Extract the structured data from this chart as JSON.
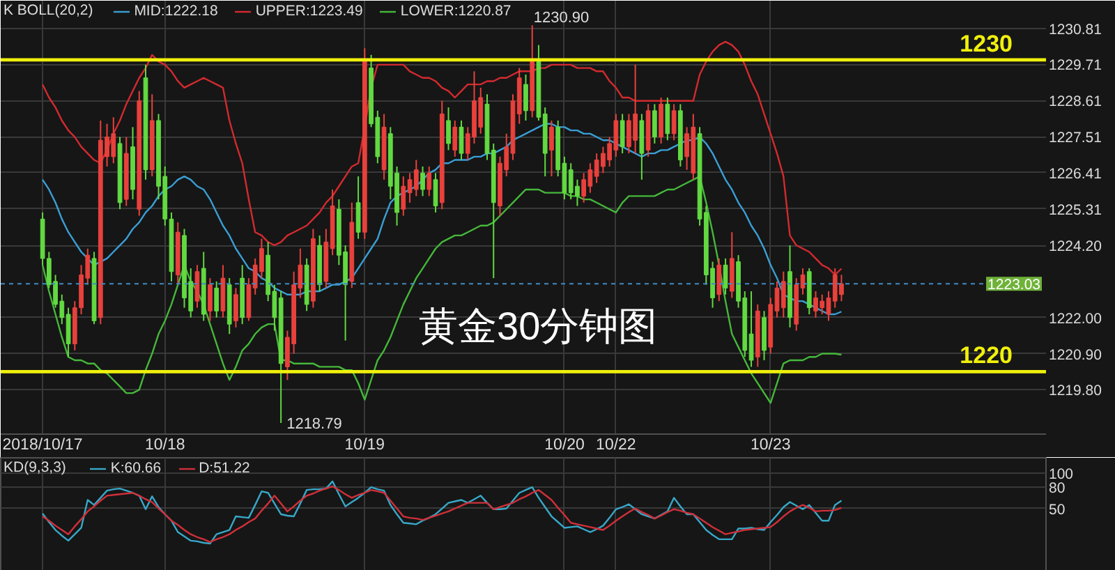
{
  "chart_data": [
    {
      "type": "candlestick",
      "title": "黄金30分钟图",
      "legend_title": "K BOLL(20,2)",
      "legend": "top left",
      "grid": true,
      "categories": [
        "2018/10/17",
        null,
        null,
        null,
        null,
        null,
        null,
        null,
        null,
        null,
        null,
        null,
        null,
        null,
        null,
        null,
        null,
        null,
        null,
        "10/18",
        null,
        null,
        null,
        null,
        null,
        null,
        null,
        null,
        null,
        null,
        null,
        null,
        null,
        null,
        null,
        null,
        null,
        null,
        null,
        null,
        null,
        null,
        null,
        null,
        null,
        null,
        null,
        null,
        null,
        null,
        "10/19",
        null,
        null,
        null,
        null,
        null,
        null,
        null,
        null,
        null,
        null,
        null,
        null,
        null,
        null,
        null,
        null,
        null,
        null,
        null,
        null,
        null,
        null,
        null,
        null,
        null,
        null,
        null,
        null,
        null,
        null,
        "10/20",
        null,
        null,
        null,
        null,
        null,
        null,
        null,
        "10/22",
        null,
        null,
        null,
        null,
        null,
        null,
        null,
        null,
        null,
        null,
        null,
        null,
        null,
        null,
        null,
        null,
        null,
        null,
        null,
        null,
        null,
        null,
        null,
        "10/23",
        null,
        null,
        null,
        null,
        null,
        null,
        null,
        null,
        null,
        null,
        null
      ],
      "ylim": [
        1218.45,
        1231.65
      ],
      "yticks": [
        {
          "value": 1219.8,
          "label": "1219.80"
        },
        {
          "value": 1220.9,
          "label": "1220.90"
        },
        {
          "value": 1222,
          "label": "1222.00"
        },
        {
          "value": 1224.2,
          "label": "1224.20"
        },
        1225.31,
        1226.41,
        1227.51,
        1228.61,
        1229.71,
        1230.81
      ],
      "ohlc": [
        [
          1225.0,
          1225.2,
          1223.6,
          1223.8
        ],
        [
          1223.8,
          1224.0,
          1222.9,
          1223.0
        ],
        [
          1223.1,
          1223.3,
          1222.3,
          1222.4
        ],
        [
          1222.5,
          1222.7,
          1221.8,
          1222.0
        ],
        [
          1222.1,
          1222.3,
          1220.8,
          1221.2
        ],
        [
          1221.2,
          1222.5,
          1221.0,
          1222.3
        ],
        [
          1222.3,
          1223.6,
          1222.1,
          1223.3
        ],
        [
          1223.2,
          1224.1,
          1223.0,
          1223.9
        ],
        [
          1223.8,
          1224.0,
          1221.8,
          1221.9
        ],
        [
          1222.0,
          1228.0,
          1221.8,
          1227.4
        ],
        [
          1226.9,
          1227.9,
          1226.6,
          1227.5
        ],
        [
          1226.9,
          1228.1,
          1226.7,
          1227.6
        ],
        [
          1227.3,
          1227.5,
          1225.3,
          1225.5
        ],
        [
          1225.6,
          1227.5,
          1225.4,
          1227.0
        ],
        [
          1227.2,
          1227.8,
          1225.6,
          1225.9
        ],
        [
          1225.3,
          1228.9,
          1225.1,
          1228.6
        ],
        [
          1229.3,
          1229.7,
          1226.2,
          1226.5
        ],
        [
          1226.5,
          1228.8,
          1226.3,
          1228.0
        ],
        [
          1228.0,
          1228.2,
          1225.6,
          1226.0
        ],
        [
          1226.3,
          1226.6,
          1224.8,
          1225.0
        ],
        [
          1225.0,
          1225.2,
          1223.1,
          1223.4
        ],
        [
          1223.3,
          1224.9,
          1223.0,
          1224.6
        ],
        [
          1224.5,
          1224.7,
          1222.3,
          1222.6
        ],
        [
          1223.1,
          1223.5,
          1222.0,
          1222.2
        ],
        [
          1222.5,
          1223.6,
          1222.3,
          1223.4
        ],
        [
          1223.5,
          1224.0,
          1221.9,
          1222.1
        ],
        [
          1222.2,
          1223.2,
          1221.9,
          1223.0
        ],
        [
          1222.9,
          1223.1,
          1222.0,
          1222.2
        ],
        [
          1222.2,
          1223.6,
          1222.0,
          1223.2
        ],
        [
          1223.0,
          1223.2,
          1221.5,
          1221.8
        ],
        [
          1221.9,
          1222.9,
          1221.7,
          1222.7
        ],
        [
          1223.2,
          1223.6,
          1221.8,
          1222.0
        ],
        [
          1222.0,
          1223.2,
          1221.9,
          1223.0
        ],
        [
          1222.9,
          1223.8,
          1222.7,
          1223.6
        ],
        [
          1223.4,
          1224.4,
          1223.2,
          1224.1
        ],
        [
          1223.9,
          1224.3,
          1222.5,
          1222.7
        ],
        [
          1222.8,
          1223.0,
          1221.6,
          1222.0
        ],
        [
          1222.6,
          1222.8,
          1218.79,
          1220.6
        ],
        [
          1220.5,
          1221.6,
          1220.1,
          1221.4
        ],
        [
          1221.2,
          1223.4,
          1220.9,
          1223.0
        ],
        [
          1222.9,
          1224.1,
          1222.6,
          1223.6
        ],
        [
          1223.6,
          1223.8,
          1222.2,
          1222.4
        ],
        [
          1222.5,
          1224.7,
          1222.3,
          1224.4
        ],
        [
          1224.2,
          1224.5,
          1222.8,
          1223.0
        ],
        [
          1223.1,
          1224.7,
          1222.9,
          1224.3
        ],
        [
          1224.1,
          1225.9,
          1223.9,
          1225.4
        ],
        [
          1225.3,
          1225.6,
          1223.6,
          1223.9
        ],
        [
          1224.0,
          1224.2,
          1221.3,
          1223.0
        ],
        [
          1223.1,
          1225.5,
          1222.9,
          1224.9
        ],
        [
          1225.5,
          1226.3,
          1224.4,
          1224.6
        ],
        [
          1224.6,
          1230.2,
          1224.4,
          1229.8
        ],
        [
          1229.6,
          1230.0,
          1227.8,
          1227.9
        ],
        [
          1228.1,
          1228.3,
          1226.7,
          1226.9
        ],
        [
          1226.5,
          1228.2,
          1226.2,
          1227.8
        ],
        [
          1227.6,
          1227.8,
          1225.6,
          1226.0
        ],
        [
          1226.4,
          1226.6,
          1224.8,
          1225.2
        ],
        [
          1225.3,
          1226.3,
          1225.1,
          1226.0
        ],
        [
          1225.8,
          1226.4,
          1225.5,
          1226.2
        ],
        [
          1225.9,
          1226.8,
          1225.7,
          1226.5
        ],
        [
          1226.4,
          1226.6,
          1225.7,
          1225.9
        ],
        [
          1225.9,
          1226.6,
          1225.7,
          1226.4
        ],
        [
          1226.2,
          1226.4,
          1225.2,
          1225.4
        ],
        [
          1225.5,
          1228.6,
          1225.3,
          1228.2
        ],
        [
          1228.0,
          1228.4,
          1227.1,
          1227.3
        ],
        [
          1227.1,
          1228.0,
          1226.9,
          1227.8
        ],
        [
          1227.8,
          1228.0,
          1226.8,
          1227.0
        ],
        [
          1227.0,
          1227.8,
          1226.8,
          1227.6
        ],
        [
          1227.5,
          1229.5,
          1227.3,
          1228.6
        ],
        [
          1227.8,
          1229.0,
          1227.6,
          1228.7
        ],
        [
          1228.5,
          1228.8,
          1226.8,
          1227.0
        ],
        [
          1227.1,
          1227.3,
          1223.2,
          1225.5
        ],
        [
          1225.4,
          1226.9,
          1225.1,
          1226.7
        ],
        [
          1226.5,
          1227.6,
          1226.3,
          1227.2
        ],
        [
          1227.0,
          1228.8,
          1226.8,
          1228.6
        ],
        [
          1228.2,
          1229.6,
          1227.9,
          1229.3
        ],
        [
          1229.1,
          1229.4,
          1228.0,
          1228.3
        ],
        [
          1228.3,
          1230.9,
          1228.1,
          1229.8
        ],
        [
          1229.8,
          1230.3,
          1228.0,
          1228.1
        ],
        [
          1228.2,
          1228.4,
          1226.3,
          1227.0
        ],
        [
          1227.1,
          1228.0,
          1226.3,
          1227.8
        ],
        [
          1227.8,
          1228.0,
          1226.3,
          1226.5
        ],
        [
          1226.7,
          1226.9,
          1225.6,
          1225.8
        ],
        [
          1226.5,
          1226.7,
          1225.6,
          1225.8
        ],
        [
          1226.0,
          1226.2,
          1225.4,
          1225.7
        ],
        [
          1225.7,
          1226.4,
          1225.5,
          1226.2
        ],
        [
          1226.0,
          1226.7,
          1225.8,
          1226.5
        ],
        [
          1226.3,
          1227.0,
          1226.1,
          1226.8
        ],
        [
          1226.6,
          1227.2,
          1226.4,
          1227.0
        ],
        [
          1226.8,
          1227.5,
          1226.6,
          1227.3
        ],
        [
          1227.1,
          1228.2,
          1226.9,
          1228.0
        ],
        [
          1228.0,
          1228.2,
          1227.0,
          1227.2
        ],
        [
          1227.2,
          1228.2,
          1227.0,
          1228.0
        ],
        [
          1227.4,
          1229.7,
          1227.0,
          1228.2
        ],
        [
          1228.0,
          1228.2,
          1226.2,
          1227.0
        ],
        [
          1227.1,
          1228.5,
          1226.9,
          1228.3
        ],
        [
          1228.3,
          1228.5,
          1227.3,
          1227.5
        ],
        [
          1227.5,
          1228.7,
          1227.3,
          1228.5
        ],
        [
          1228.5,
          1228.7,
          1227.4,
          1227.6
        ],
        [
          1227.6,
          1228.5,
          1227.4,
          1228.3
        ],
        [
          1228.3,
          1228.5,
          1226.6,
          1226.8
        ],
        [
          1226.9,
          1227.8,
          1226.5,
          1227.6
        ],
        [
          1226.4,
          1228.2,
          1226.2,
          1227.8
        ],
        [
          1227.6,
          1227.8,
          1224.8,
          1225.0
        ],
        [
          1225.2,
          1225.4,
          1223.0,
          1223.3
        ],
        [
          1223.5,
          1223.7,
          1222.3,
          1222.6
        ],
        [
          1222.7,
          1223.8,
          1222.5,
          1223.6
        ],
        [
          1223.6,
          1223.8,
          1222.7,
          1222.9
        ],
        [
          1222.8,
          1224.6,
          1222.6,
          1223.8
        ],
        [
          1223.7,
          1223.9,
          1222.3,
          1222.5
        ],
        [
          1222.6,
          1222.8,
          1220.8,
          1221.0
        ],
        [
          1221.5,
          1222.8,
          1220.5,
          1220.7
        ],
        [
          1220.8,
          1222.4,
          1220.5,
          1222.2
        ],
        [
          1222.0,
          1222.2,
          1220.7,
          1221.0
        ],
        [
          1221.1,
          1222.6,
          1220.9,
          1222.4
        ],
        [
          1222.2,
          1223.1,
          1222.0,
          1222.9
        ],
        [
          1222.3,
          1223.4,
          1222.0,
          1223.1
        ],
        [
          1223.4,
          1224.2,
          1221.7,
          1222.0
        ],
        [
          1221.8,
          1223.2,
          1221.6,
          1223.0
        ],
        [
          1222.9,
          1223.5,
          1222.7,
          1223.3
        ],
        [
          1223.4,
          1223.5,
          1222.1,
          1222.3
        ],
        [
          1222.2,
          1222.8,
          1222.0,
          1222.6
        ],
        [
          1222.3,
          1222.7,
          1222.1,
          1222.5
        ],
        [
          1222.1,
          1222.8,
          1221.9,
          1222.6
        ],
        [
          1222.5,
          1223.5,
          1222.3,
          1223.3
        ],
        [
          1222.7,
          1223.3,
          1222.5,
          1223.03
        ]
      ],
      "colors": [
        "#62d941",
        "#62d941",
        "#62d941",
        "#62d941",
        "#62d941",
        "#e8413c",
        "#e8413c",
        "#e8413c",
        "#62d941",
        "#e8413c",
        "#e8413c",
        "#e8413c",
        "#62d941",
        "#e8413c",
        "#62d941",
        "#e8413c",
        "#62d941",
        "#e8413c",
        "#62d941",
        "#62d941",
        "#62d941",
        "#e8413c",
        "#62d941",
        "#62d941",
        "#e8413c",
        "#62d941",
        "#e8413c",
        "#62d941",
        "#e8413c",
        "#62d941",
        "#e8413c",
        "#62d941",
        "#e8413c",
        "#e8413c",
        "#e8413c",
        "#62d941",
        "#62d941",
        "#62d941",
        "#e8413c",
        "#e8413c",
        "#e8413c",
        "#62d941",
        "#e8413c",
        "#62d941",
        "#e8413c",
        "#e8413c",
        "#62d941",
        "#62d941",
        "#e8413c",
        "#62d941",
        "#e8413c",
        "#62d941",
        "#62d941",
        "#e8413c",
        "#62d941",
        "#62d941",
        "#e8413c",
        "#e8413c",
        "#e8413c",
        "#62d941",
        "#e8413c",
        "#62d941",
        "#e8413c",
        "#62d941",
        "#e8413c",
        "#62d941",
        "#e8413c",
        "#e8413c",
        "#e8413c",
        "#62d941",
        "#62d941",
        "#e8413c",
        "#e8413c",
        "#e8413c",
        "#e8413c",
        "#62d941",
        "#e8413c",
        "#62d941",
        "#62d941",
        "#e8413c",
        "#62d941",
        "#62d941",
        "#62d941",
        "#62d941",
        "#e8413c",
        "#e8413c",
        "#e8413c",
        "#e8413c",
        "#e8413c",
        "#e8413c",
        "#62d941",
        "#e8413c",
        "#e8413c",
        "#62d941",
        "#e8413c",
        "#62d941",
        "#e8413c",
        "#62d941",
        "#e8413c",
        "#62d941",
        "#e8413c",
        "#e8413c",
        "#62d941",
        "#62d941",
        "#62d941",
        "#e8413c",
        "#62d941",
        "#e8413c",
        "#62d941",
        "#62d941",
        "#62d941",
        "#e8413c",
        "#62d941",
        "#e8413c",
        "#e8413c",
        "#e8413c",
        "#62d941",
        "#e8413c",
        "#e8413c",
        "#62d941",
        "#e8413c",
        "#e8413c",
        "#e8413c",
        "#e8413c",
        "#e8413c"
      ],
      "series": [
        {
          "name": "MID:1222.18",
          "type": "line",
          "color": "#3a9fd6",
          "values": [
            1226.2,
            1225.9,
            1225.5,
            1225.0,
            1224.6,
            1224.3,
            1224.0,
            1223.8,
            1223.6,
            1223.7,
            1223.8,
            1224.0,
            1224.2,
            1224.4,
            1224.7,
            1224.9,
            1225.2,
            1225.4,
            1225.7,
            1225.9,
            1226.0,
            1226.2,
            1226.3,
            1226.2,
            1226.0,
            1225.9,
            1225.6,
            1225.2,
            1224.8,
            1224.5,
            1224.1,
            1223.8,
            1223.5,
            1223.4,
            1223.2,
            1223.1,
            1222.9,
            1222.8,
            1222.7,
            1222.7,
            1222.7,
            1222.8,
            1222.8,
            1222.8,
            1222.9,
            1223.0,
            1223.0,
            1223.1,
            1223.2,
            1223.5,
            1223.8,
            1224.1,
            1224.4,
            1225.0,
            1225.5,
            1225.7,
            1225.8,
            1225.9,
            1226.0,
            1226.2,
            1226.4,
            1226.5,
            1226.7,
            1226.7,
            1226.8,
            1226.8,
            1226.8,
            1226.9,
            1226.9,
            1227.0,
            1227.0,
            1227.1,
            1227.2,
            1227.4,
            1227.5,
            1227.6,
            1227.7,
            1227.8,
            1227.9,
            1227.9,
            1227.8,
            1227.8,
            1227.7,
            1227.7,
            1227.6,
            1227.6,
            1227.5,
            1227.4,
            1227.4,
            1227.3,
            1227.2,
            1227.1,
            1227.0,
            1226.9,
            1227.0,
            1227.0,
            1227.1,
            1227.1,
            1227.2,
            1227.3,
            1227.4,
            1227.4,
            1227.5,
            1227.3,
            1227.0,
            1226.6,
            1226.2,
            1225.9,
            1225.5,
            1225.2,
            1224.8,
            1224.5,
            1224.1,
            1223.6,
            1223.2,
            1222.7,
            1222.6,
            1222.5,
            1222.5,
            1222.4,
            1222.3,
            1222.2,
            1222.1,
            1222.1,
            1222.18
          ]
        },
        {
          "name": "UPPER:1223.49",
          "type": "line",
          "color": "#d42a2f",
          "values": [
            1229.1,
            1228.7,
            1228.4,
            1228.0,
            1227.7,
            1227.5,
            1227.2,
            1227.0,
            1226.8,
            1226.7,
            1227.1,
            1227.6,
            1228.0,
            1228.5,
            1228.9,
            1229.3,
            1229.6,
            1230.0,
            1229.8,
            1229.7,
            1229.5,
            1229.2,
            1229.0,
            1229.1,
            1229.2,
            1229.3,
            1229.2,
            1229.1,
            1229.0,
            1228.0,
            1227.3,
            1226.7,
            1225.6,
            1224.6,
            1224.5,
            1224.3,
            1224.2,
            1224.3,
            1224.5,
            1224.6,
            1224.7,
            1224.8,
            1225.0,
            1225.2,
            1225.5,
            1225.7,
            1226.0,
            1226.3,
            1226.6,
            1226.7,
            1227.8,
            1229.0,
            1229.7,
            1229.7,
            1229.7,
            1229.7,
            1229.7,
            1229.5,
            1229.4,
            1229.3,
            1229.3,
            1229.2,
            1229.0,
            1228.9,
            1228.7,
            1228.9,
            1229.1,
            1229.1,
            1229.1,
            1229.2,
            1229.2,
            1229.3,
            1229.3,
            1229.4,
            1229.5,
            1229.5,
            1229.5,
            1229.6,
            1229.6,
            1229.7,
            1229.7,
            1229.7,
            1229.7,
            1229.6,
            1229.6,
            1229.6,
            1229.5,
            1229.5,
            1229.2,
            1229.0,
            1228.7,
            1228.7,
            1228.6,
            1228.6,
            1228.6,
            1228.6,
            1228.6,
            1228.6,
            1228.6,
            1228.6,
            1228.6,
            1228.6,
            1229.4,
            1229.8,
            1230.1,
            1230.3,
            1230.4,
            1230.3,
            1230.1,
            1229.7,
            1229.2,
            1228.8,
            1228.2,
            1227.6,
            1227.0,
            1226.3,
            1224.5,
            1224.2,
            1224.1,
            1224.0,
            1223.8,
            1223.6,
            1223.5,
            1223.3,
            1223.49
          ]
        },
        {
          "name": "LOWER:1220.87",
          "type": "line",
          "color": "#45b83a",
          "values": [
            1223.6,
            1222.8,
            1222.1,
            1221.4,
            1220.8,
            1220.7,
            1220.7,
            1220.6,
            1220.6,
            1220.4,
            1220.3,
            1220.1,
            1219.9,
            1219.7,
            1219.7,
            1219.8,
            1220.4,
            1220.9,
            1221.5,
            1221.9,
            1222.4,
            1223.0,
            1223.6,
            1223.1,
            1222.8,
            1222.4,
            1221.8,
            1221.2,
            1220.6,
            1220.1,
            1220.5,
            1221.0,
            1221.2,
            1221.5,
            1221.7,
            1221.8,
            1221.8,
            1220.7,
            1220.7,
            1220.6,
            1220.6,
            1220.6,
            1220.6,
            1220.5,
            1220.5,
            1220.5,
            1220.5,
            1220.4,
            1220.4,
            1220.0,
            1219.5,
            1220.1,
            1220.7,
            1221.0,
            1221.4,
            1221.9,
            1222.4,
            1222.8,
            1223.2,
            1223.5,
            1223.8,
            1224.1,
            1224.3,
            1224.4,
            1224.5,
            1224.5,
            1224.6,
            1224.7,
            1224.8,
            1224.8,
            1224.9,
            1225.1,
            1225.3,
            1225.5,
            1225.7,
            1225.9,
            1225.9,
            1225.9,
            1225.8,
            1225.8,
            1225.8,
            1225.8,
            1225.7,
            1225.7,
            1225.6,
            1225.6,
            1225.5,
            1225.4,
            1225.3,
            1225.2,
            1225.5,
            1225.7,
            1225.7,
            1225.7,
            1225.7,
            1225.7,
            1225.8,
            1225.9,
            1225.9,
            1226.0,
            1226.1,
            1226.2,
            1226.3,
            1225.5,
            1224.6,
            1223.6,
            1222.5,
            1221.5,
            1221.1,
            1220.7,
            1220.3,
            1220.0,
            1219.7,
            1219.4,
            1220.0,
            1220.6,
            1220.7,
            1220.7,
            1220.7,
            1220.8,
            1220.8,
            1220.9,
            1220.9,
            1220.9,
            1220.87
          ]
        }
      ],
      "ref_lines": [
        {
          "axis": "y",
          "value": 1229.85,
          "label": "1230",
          "color": "#f0f00c"
        },
        {
          "axis": "y",
          "value": 1220.35,
          "label": "1220",
          "color": "#f0f00c"
        },
        {
          "axis": "y",
          "value": 1223.03,
          "label": "1223.03",
          "color": "#3f8cc4",
          "line_style": "dashed"
        }
      ],
      "annotations": [
        "1230.90",
        "1218.79"
      ]
    },
    {
      "type": "line",
      "legend_title": "KD(9,3,3)",
      "legend": "top left",
      "grid": true,
      "tick_labels": "y",
      "categories": [
        null,
        null,
        null,
        null,
        null,
        null,
        null,
        null,
        null,
        null,
        null,
        null,
        null,
        null,
        null,
        null,
        null,
        null,
        null,
        null,
        null,
        null,
        null,
        null,
        null,
        null,
        null,
        null,
        null,
        null,
        null,
        null,
        null,
        null,
        null,
        null,
        null,
        null,
        null,
        null,
        null,
        null,
        null,
        null,
        null,
        null,
        null,
        null,
        null,
        null,
        null,
        null,
        null,
        null,
        null,
        null,
        null,
        null,
        null,
        null,
        null,
        null,
        null,
        null,
        null,
        null,
        null,
        null,
        null,
        null,
        null,
        null,
        null,
        null,
        null,
        null,
        null,
        null,
        null,
        null,
        null,
        null,
        null,
        null,
        null,
        null,
        null,
        null,
        null,
        null,
        null,
        null,
        null,
        null,
        null,
        null,
        null,
        null,
        null,
        null,
        null,
        null,
        null,
        null,
        null,
        null,
        null,
        null,
        null,
        null,
        null,
        null,
        null,
        null,
        null,
        null,
        null,
        null,
        null,
        null,
        null,
        null,
        null,
        null,
        null
      ],
      "ylim": [
        -39,
        121
      ],
      "yticks": [
        50,
        80,
        100
      ],
      "series": [
        {
          "name": "K:60.66",
          "color": "#38a8c8",
          "values": [
            43,
            31,
            20,
            12,
            5,
            14,
            23,
            62,
            55,
            65,
            75,
            77,
            78,
            75,
            72,
            68,
            49,
            67,
            52,
            42,
            33,
            17,
            11,
            5,
            4,
            2,
            1,
            14,
            17,
            20,
            39,
            38,
            37,
            55,
            74,
            72,
            57,
            42,
            40,
            39,
            57,
            76,
            77,
            77,
            78,
            88,
            70,
            53,
            59,
            65,
            72,
            80,
            77,
            75,
            55,
            42,
            30,
            29,
            28,
            33,
            37,
            42,
            50,
            58,
            60,
            62,
            58,
            63,
            68,
            58,
            49,
            49,
            50,
            61,
            72,
            76,
            80,
            65,
            52,
            39,
            31,
            23,
            24,
            25,
            21,
            17,
            21,
            26,
            37,
            49,
            52,
            56,
            49,
            42,
            39,
            36,
            41,
            46,
            65,
            53,
            42,
            42,
            31,
            20,
            13,
            7,
            7,
            7,
            22,
            22,
            23,
            21,
            20,
            31,
            41,
            52,
            59,
            54,
            49,
            55,
            44,
            33,
            33,
            55,
            61
          ]
        },
        {
          "name": "D:51.22",
          "color": "#d0303a",
          "values": [
            39,
            33,
            26,
            20,
            14,
            25,
            35,
            46,
            53,
            61,
            68,
            69,
            70,
            71,
            72,
            68,
            63,
            59,
            50,
            42,
            33,
            27,
            20,
            14,
            10,
            7,
            3,
            7,
            10,
            14,
            20,
            25,
            31,
            36,
            47,
            57,
            68,
            57,
            46,
            53,
            61,
            68,
            71,
            75,
            78,
            81,
            76,
            70,
            65,
            69,
            72,
            76,
            74,
            72,
            61,
            50,
            39,
            37,
            36,
            34,
            37,
            40,
            43,
            46,
            50,
            54,
            58,
            58,
            58,
            58,
            49,
            52,
            55,
            58,
            63,
            67,
            72,
            76,
            69,
            62,
            51,
            41,
            30,
            28,
            26,
            24,
            22,
            20,
            26,
            33,
            39,
            45,
            50,
            45,
            41,
            36,
            40,
            45,
            49,
            47,
            44,
            42,
            36,
            30,
            24,
            19,
            14,
            16,
            18,
            20,
            21,
            22,
            23,
            24,
            31,
            39,
            46,
            51,
            55,
            51,
            46,
            47,
            47,
            48,
            51
          ]
        }
      ]
    }
  ]
}
